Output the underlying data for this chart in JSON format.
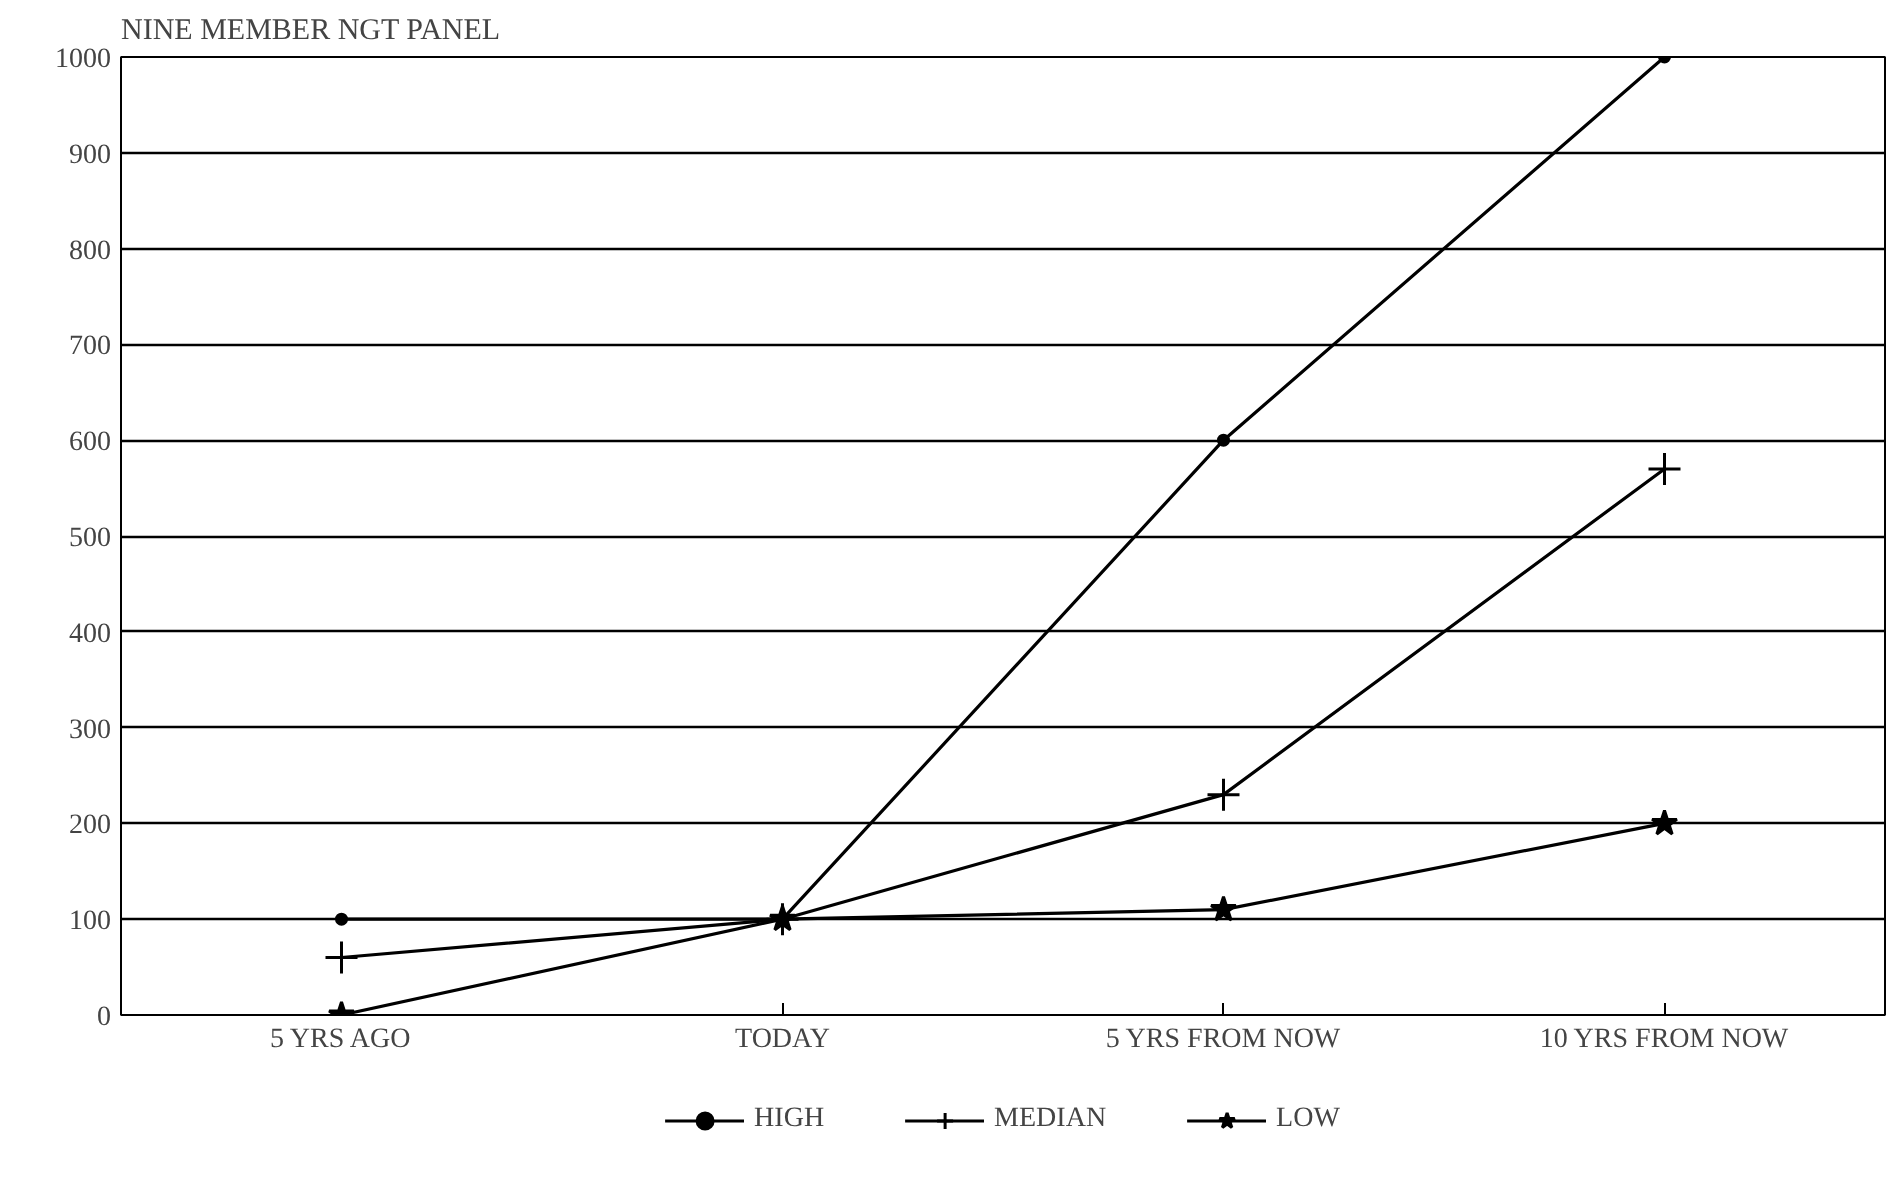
{
  "chart_data": {
    "type": "line",
    "title": "NINE MEMBER NGT PANEL",
    "categories": [
      "5 YRS AGO",
      "TODAY",
      "5 YRS FROM NOW",
      "10 YRS FROM NOW"
    ],
    "series": [
      {
        "name": "HIGH",
        "color": "#000000",
        "marker": "circle",
        "values": [
          100,
          100,
          600,
          1000
        ]
      },
      {
        "name": "MEDIAN",
        "color": "#000000",
        "marker": "cross",
        "values": [
          60,
          100,
          230,
          570
        ]
      },
      {
        "name": "LOW",
        "color": "#000000",
        "marker": "star",
        "values": [
          0,
          100,
          110,
          200
        ]
      }
    ],
    "ylim": [
      0,
      1000
    ],
    "yticks": [
      0,
      100,
      200,
      300,
      400,
      500,
      600,
      700,
      800,
      900,
      1000
    ],
    "grid": "y",
    "legend": "bottom",
    "line_style": "solid"
  }
}
